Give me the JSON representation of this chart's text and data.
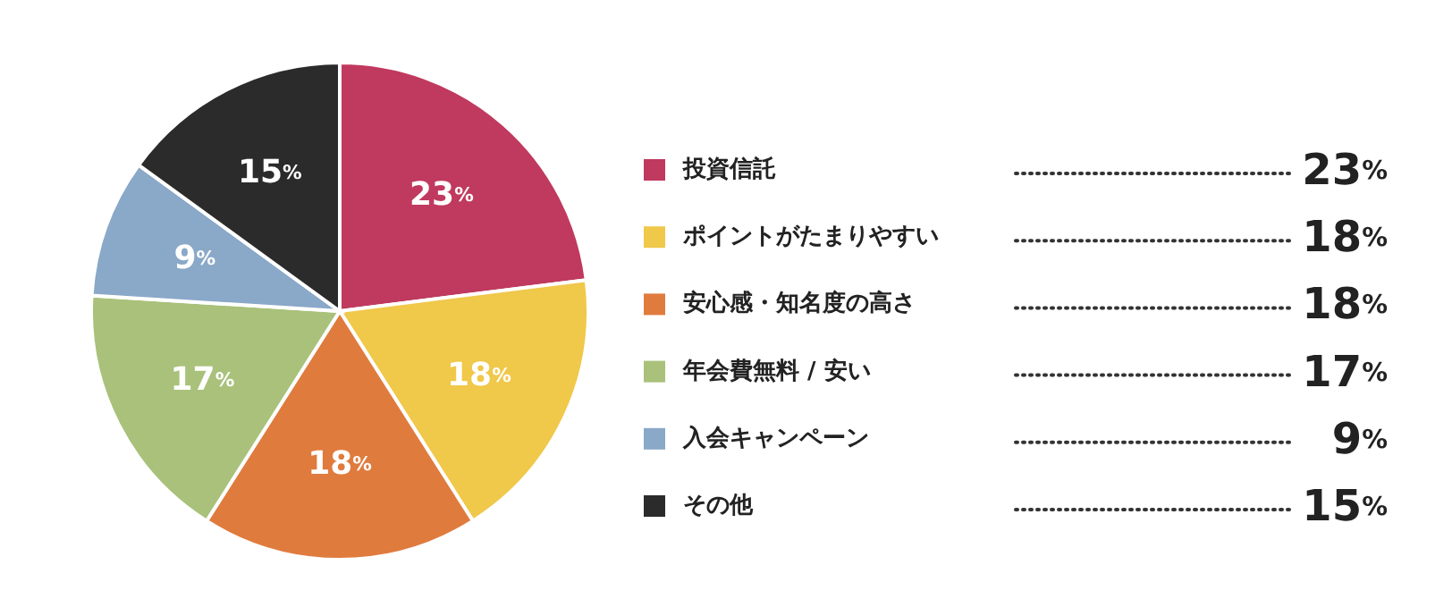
{
  "chart_data": {
    "type": "pie",
    "categories": [
      "投資信託",
      "ポイントがたまりやすい",
      "安心感・知名度の高さ",
      "年会費無料 / 安い",
      "入会キャンペーン",
      "その他"
    ],
    "values": [
      23,
      18,
      18,
      17,
      9,
      15
    ],
    "colors": [
      "#c0395e",
      "#f0c84a",
      "#e07b3e",
      "#a9c17a",
      "#8aa8c8",
      "#2b2b2b"
    ],
    "value_labels": [
      "23%",
      "18%",
      "18%",
      "17%",
      "9%",
      "15%"
    ],
    "legend": "right"
  }
}
